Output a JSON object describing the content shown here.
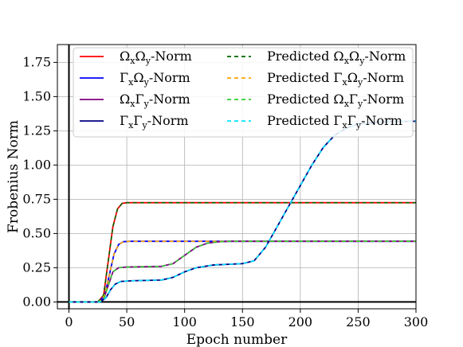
{
  "chart_data": {
    "type": "line",
    "title": "",
    "xlabel": "Epoch number",
    "ylabel": "Frobenius Norm",
    "xlim": [
      -10,
      300
    ],
    "ylim": [
      -0.05,
      1.88
    ],
    "x_ticks": [
      0,
      50,
      100,
      150,
      200,
      250,
      300
    ],
    "y_ticks": [
      0.0,
      0.25,
      0.5,
      0.75,
      1.0,
      1.25,
      1.5,
      1.75
    ],
    "grid": true,
    "legend_placement": "upper-left, two columns",
    "series": [
      {
        "name": "ΩxΩy-Norm",
        "label_parts": [
          "Ω",
          "x",
          "Ω",
          "y",
          "-Norm"
        ],
        "color": "#ff0000",
        "style": "solid",
        "points": [
          [
            0,
            0
          ],
          [
            25,
            0
          ],
          [
            30,
            0.05
          ],
          [
            34,
            0.3
          ],
          [
            38,
            0.55
          ],
          [
            42,
            0.68
          ],
          [
            46,
            0.72
          ],
          [
            50,
            0.725
          ],
          [
            300,
            0.725
          ]
        ]
      },
      {
        "name": "ΓxΩy-Norm",
        "label_parts": [
          "Γ",
          "x",
          "Ω",
          "y",
          "-Norm"
        ],
        "color": "#0000ff",
        "style": "solid",
        "points": [
          [
            0,
            0
          ],
          [
            26,
            0
          ],
          [
            31,
            0.05
          ],
          [
            35,
            0.2
          ],
          [
            39,
            0.35
          ],
          [
            43,
            0.42
          ],
          [
            47,
            0.44
          ],
          [
            52,
            0.443
          ],
          [
            300,
            0.443
          ]
        ]
      },
      {
        "name": "ΩxΓy-Norm",
        "label_parts": [
          "Ω",
          "x",
          "Γ",
          "y",
          "-Norm"
        ],
        "color": "#800080",
        "style": "solid",
        "points": [
          [
            0,
            0
          ],
          [
            26,
            0
          ],
          [
            30,
            0.02
          ],
          [
            34,
            0.12
          ],
          [
            38,
            0.22
          ],
          [
            43,
            0.25
          ],
          [
            50,
            0.255
          ],
          [
            80,
            0.26
          ],
          [
            90,
            0.28
          ],
          [
            100,
            0.34
          ],
          [
            110,
            0.4
          ],
          [
            120,
            0.43
          ],
          [
            130,
            0.44
          ],
          [
            140,
            0.443
          ],
          [
            300,
            0.443
          ]
        ]
      },
      {
        "name": "ΓxΓy-Norm",
        "label_parts": [
          "Γ",
          "x",
          "Γ",
          "y",
          "-Norm"
        ],
        "color": "#000080",
        "style": "solid",
        "points": [
          [
            0,
            0
          ],
          [
            27,
            0
          ],
          [
            32,
            0.03
          ],
          [
            36,
            0.09
          ],
          [
            40,
            0.13
          ],
          [
            45,
            0.15
          ],
          [
            55,
            0.155
          ],
          [
            80,
            0.16
          ],
          [
            90,
            0.18
          ],
          [
            100,
            0.22
          ],
          [
            110,
            0.25
          ],
          [
            125,
            0.27
          ],
          [
            150,
            0.28
          ],
          [
            160,
            0.3
          ],
          [
            170,
            0.4
          ],
          [
            180,
            0.55
          ],
          [
            190,
            0.7
          ],
          [
            200,
            0.85
          ],
          [
            210,
            1.0
          ],
          [
            220,
            1.13
          ],
          [
            230,
            1.22
          ],
          [
            240,
            1.27
          ],
          [
            250,
            1.3
          ],
          [
            270,
            1.315
          ],
          [
            300,
            1.32
          ]
        ]
      },
      {
        "name": "Predicted ΩxΩy-Norm",
        "label_parts": [
          "Predicted Ω",
          "x",
          "Ω",
          "y",
          "-Norm"
        ],
        "color": "#006400",
        "style": "dashed",
        "points": [
          [
            0,
            0
          ],
          [
            25,
            0
          ],
          [
            30,
            0.05
          ],
          [
            34,
            0.3
          ],
          [
            38,
            0.55
          ],
          [
            42,
            0.68
          ],
          [
            46,
            0.72
          ],
          [
            50,
            0.725
          ],
          [
            300,
            0.725
          ]
        ]
      },
      {
        "name": "Predicted ΓxΩy-Norm",
        "label_parts": [
          "Predicted Γ",
          "x",
          "Ω",
          "y",
          "-Norm"
        ],
        "color": "#ffa500",
        "style": "dashed",
        "points": [
          [
            0,
            0
          ],
          [
            26,
            0
          ],
          [
            31,
            0.05
          ],
          [
            35,
            0.2
          ],
          [
            39,
            0.35
          ],
          [
            43,
            0.42
          ],
          [
            47,
            0.44
          ],
          [
            52,
            0.443
          ],
          [
            300,
            0.443
          ]
        ]
      },
      {
        "name": "Predicted ΩxΓy-Norm",
        "label_parts": [
          "Predicted Ω",
          "x",
          "Γ",
          "y",
          "-Norm"
        ],
        "color": "#32cd32",
        "style": "dashed",
        "points": [
          [
            0,
            0
          ],
          [
            26,
            0
          ],
          [
            30,
            0.02
          ],
          [
            34,
            0.12
          ],
          [
            38,
            0.22
          ],
          [
            43,
            0.25
          ],
          [
            50,
            0.255
          ],
          [
            80,
            0.26
          ],
          [
            90,
            0.28
          ],
          [
            100,
            0.34
          ],
          [
            110,
            0.4
          ],
          [
            120,
            0.43
          ],
          [
            130,
            0.44
          ],
          [
            140,
            0.443
          ],
          [
            300,
            0.443
          ]
        ]
      },
      {
        "name": "Predicted ΓxΓy-Norm",
        "label_parts": [
          "Predicted Γ",
          "x",
          "Γ",
          "y",
          "-Norm"
        ],
        "color": "#00e5ff",
        "style": "dashed",
        "points": [
          [
            0,
            0
          ],
          [
            27,
            0
          ],
          [
            32,
            0.03
          ],
          [
            36,
            0.09
          ],
          [
            40,
            0.13
          ],
          [
            45,
            0.15
          ],
          [
            55,
            0.155
          ],
          [
            80,
            0.16
          ],
          [
            90,
            0.18
          ],
          [
            100,
            0.22
          ],
          [
            110,
            0.25
          ],
          [
            125,
            0.27
          ],
          [
            150,
            0.28
          ],
          [
            160,
            0.3
          ],
          [
            170,
            0.4
          ],
          [
            180,
            0.55
          ],
          [
            190,
            0.7
          ],
          [
            200,
            0.85
          ],
          [
            210,
            1.0
          ],
          [
            220,
            1.13
          ],
          [
            230,
            1.22
          ],
          [
            240,
            1.27
          ],
          [
            250,
            1.3
          ],
          [
            270,
            1.315
          ],
          [
            300,
            1.32
          ]
        ]
      }
    ],
    "reference_lines": {
      "x": 0,
      "y": 0,
      "color": "#000000"
    }
  }
}
